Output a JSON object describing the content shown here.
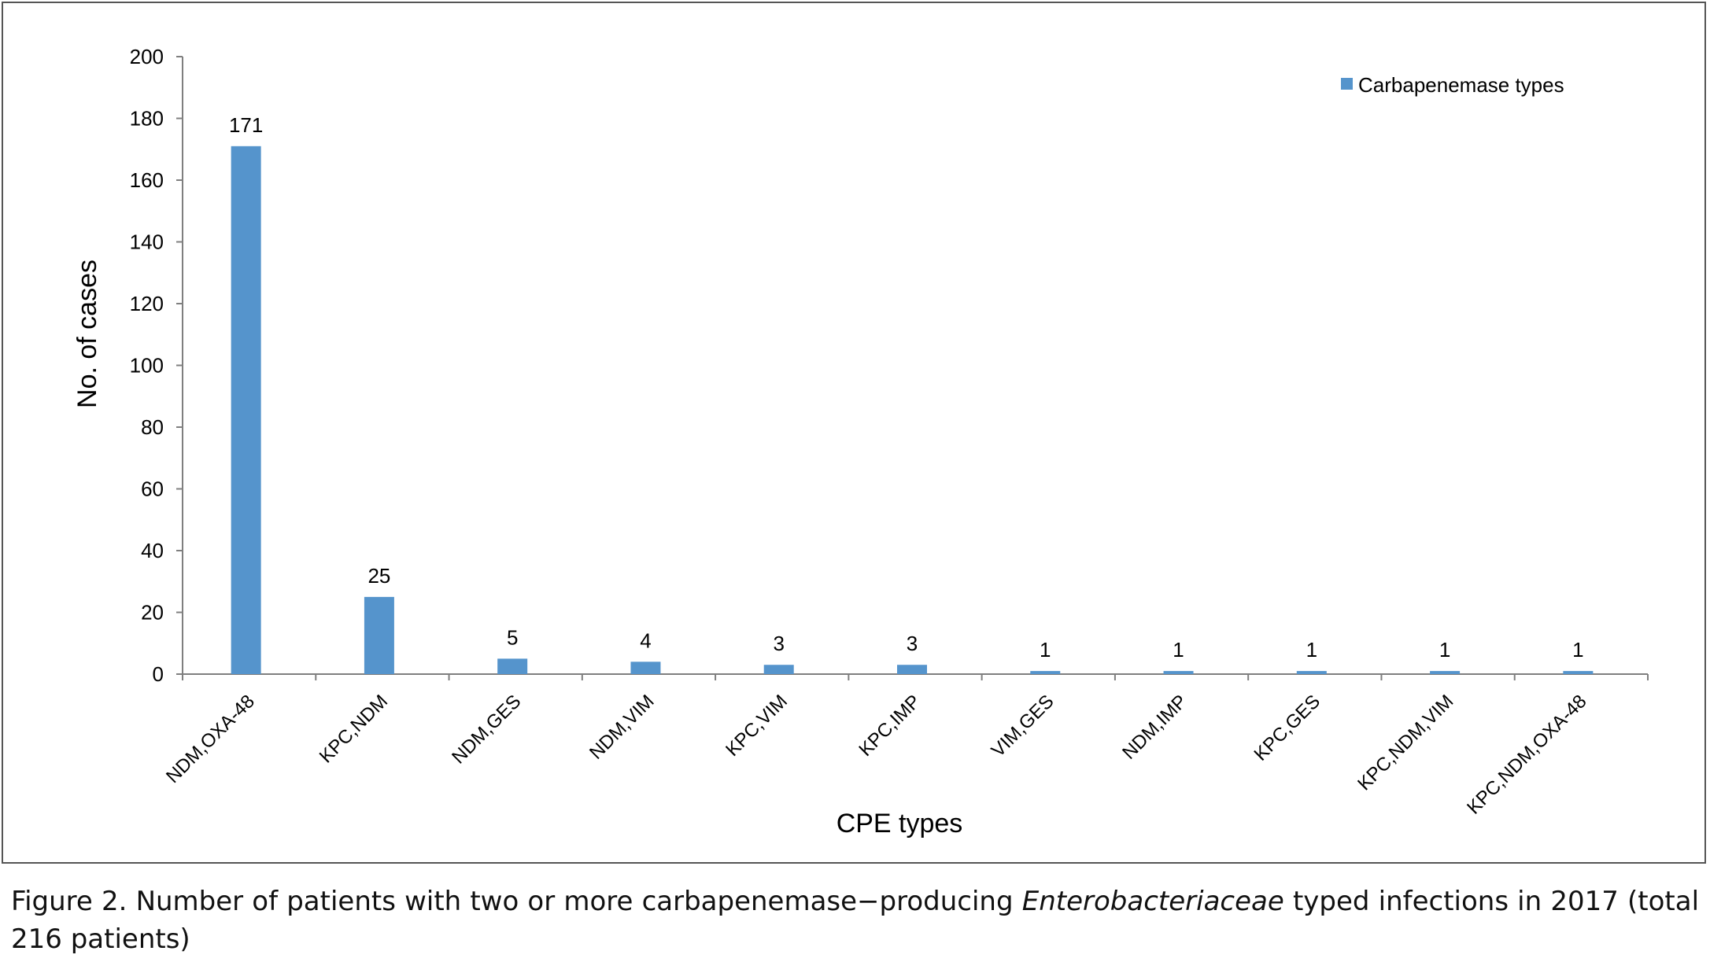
{
  "chart_data": {
    "type": "bar",
    "categories": [
      "NDM,OXA-48",
      "KPC,NDM",
      "NDM,GES",
      "NDM,VIM",
      "KPC,VIM",
      "KPC,IMP",
      "VIM,GES",
      "NDM,IMP",
      "KPC,GES",
      "KPC,NDM,VIM",
      "KPC,NDM,OXA-48"
    ],
    "series": [
      {
        "name": "Carbapenemase types",
        "values": [
          171,
          25,
          5,
          4,
          3,
          3,
          1,
          1,
          1,
          1,
          1
        ],
        "color": "#5594CC"
      }
    ],
    "data_labels": [
      "171",
      "25",
      "5",
      "4",
      "3",
      "3",
      "1",
      "1",
      "1",
      "1",
      "1"
    ],
    "xlabel": "CPE types",
    "ylabel": "No. of cases",
    "ylim": [
      0,
      200
    ],
    "yticks": [
      0,
      20,
      40,
      60,
      80,
      100,
      120,
      140,
      160,
      180,
      200
    ],
    "grid": false,
    "legend_position": "top-right"
  },
  "caption": {
    "label": "Figure 2.",
    "text_before": "Number of patients with two or more carbapenemase−producing",
    "italic": "Enterobacteriaceae",
    "text_after": "typed infections in 2017 (total 216 patients)"
  }
}
